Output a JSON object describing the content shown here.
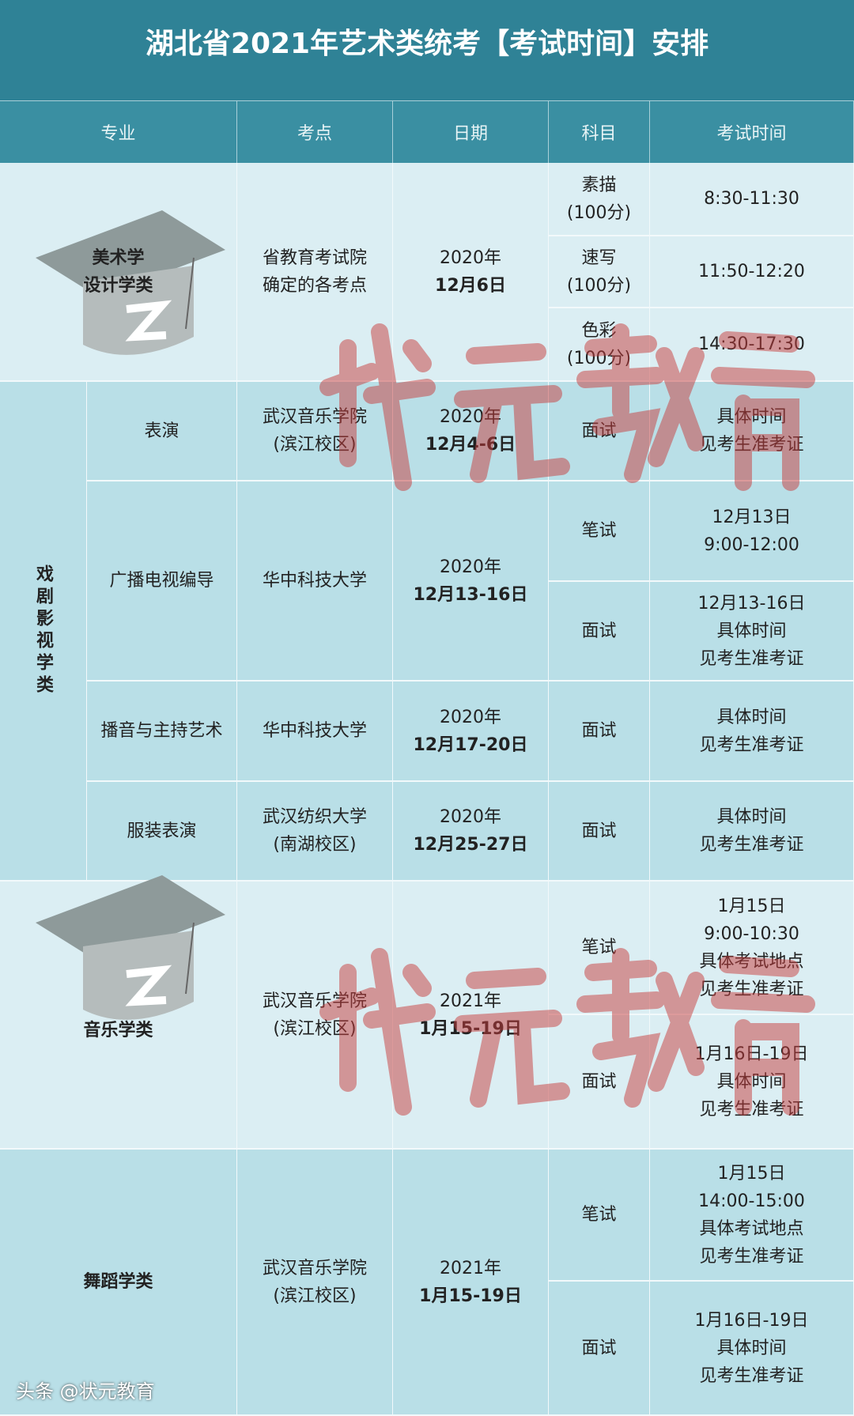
{
  "title": "湖北省2021年艺术类统考【考试时间】安排",
  "headers": [
    "专业",
    "考点",
    "日期",
    "科目",
    "考试时间"
  ],
  "art": {
    "major_l1": "美术学",
    "major_l2": "设计学类",
    "venue_l1": "省教育考试院",
    "venue_l2": "确定的各考点",
    "year": "2020年",
    "date": "12月6日",
    "subjects": [
      {
        "name": "素描",
        "score": "(100分)",
        "time": "8:30-11:30"
      },
      {
        "name": "速写",
        "score": "(100分)",
        "time": "11:50-12:20"
      },
      {
        "name": "色彩",
        "score": "(100分)",
        "time": "14:30-17:30"
      }
    ]
  },
  "drama": {
    "category": "戏剧影视学类",
    "rows": [
      {
        "major": "表演",
        "venue_l1": "武汉音乐学院",
        "venue_l2": "(滨江校区)",
        "year": "2020年",
        "date": "12月4-6日",
        "subjects": [
          {
            "name": "面试",
            "time": [
              "具体时间",
              "见考生准考证"
            ]
          }
        ]
      },
      {
        "major": "广播电视编导",
        "venue_l1": "华中科技大学",
        "venue_l2": "",
        "year": "2020年",
        "date": "12月13-16日",
        "subjects": [
          {
            "name": "笔试",
            "time": [
              "12月13日",
              "9:00-12:00"
            ]
          },
          {
            "name": "面试",
            "time": [
              "12月13-16日",
              "具体时间",
              "见考生准考证"
            ]
          }
        ]
      },
      {
        "major": "播音与主持艺术",
        "venue_l1": "华中科技大学",
        "venue_l2": "",
        "year": "2020年",
        "date": "12月17-20日",
        "subjects": [
          {
            "name": "面试",
            "time": [
              "具体时间",
              "见考生准考证"
            ]
          }
        ]
      },
      {
        "major": "服装表演",
        "venue_l1": "武汉纺织大学",
        "venue_l2": "(南湖校区)",
        "year": "2020年",
        "date": "12月25-27日",
        "subjects": [
          {
            "name": "面试",
            "time": [
              "具体时间",
              "见考生准考证"
            ]
          }
        ]
      }
    ]
  },
  "music": {
    "major": "音乐学类",
    "venue_l1": "武汉音乐学院",
    "venue_l2": "(滨江校区)",
    "year": "2021年",
    "date": "1月15-19日",
    "subjects": [
      {
        "name": "笔试",
        "time": [
          "1月15日",
          "9:00-10:30",
          "具体考试地点",
          "见考生准考证"
        ]
      },
      {
        "name": "面试",
        "time": [
          "1月16日-19日",
          "具体时间",
          "见考生准考证"
        ]
      }
    ]
  },
  "dance": {
    "major": "舞蹈学类",
    "venue_l1": "武汉音乐学院",
    "venue_l2": "(滨江校区)",
    "year": "2021年",
    "date": "1月15-19日",
    "subjects": [
      {
        "name": "笔试",
        "time": [
          "1月15日",
          "14:00-15:00",
          "具体考试地点",
          "见考生准考证"
        ]
      },
      {
        "name": "面试",
        "time": [
          "1月16日-19日",
          "具体时间",
          "见考生准考证"
        ]
      }
    ]
  },
  "watermark": "状元教育",
  "footer": "头条 @状元教育",
  "colors": {
    "title_bg": "#2f8296",
    "header_bg": "#3a8fa2",
    "row_light": "#dbeef3",
    "row_dark": "#b9dfe7",
    "watermark": "#c83c3c"
  }
}
